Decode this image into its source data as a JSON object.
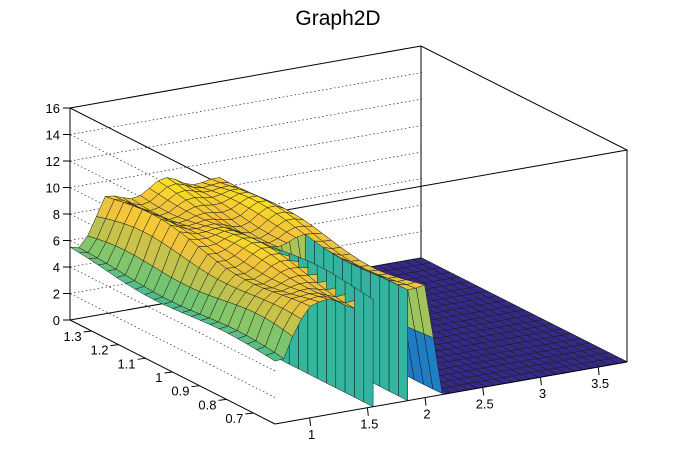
{
  "chart_data": {
    "type": "surface",
    "title": "Graph2D",
    "xlabel": "",
    "ylabel": "",
    "zlabel": "",
    "x_ticks": [
      "1",
      "1.5",
      "2",
      "2.5",
      "3",
      "3.5"
    ],
    "y_ticks": [
      "0.7",
      "0.8",
      "0.9",
      "1",
      "1.1",
      "1.2",
      "1.3"
    ],
    "z_ticks": [
      "0",
      "2",
      "4",
      "6",
      "8",
      "10",
      "12",
      "14",
      "16"
    ],
    "xlim": [
      0.7,
      3.75
    ],
    "ylim": [
      0.62,
      1.38
    ],
    "zlim": [
      0,
      16
    ],
    "grid": true,
    "colormap": [
      "#352a87",
      "#1e5cc0",
      "#1f9bc7",
      "#35b79c",
      "#7fc66c",
      "#c8c24b",
      "#f5c43a",
      "#f9fb0e"
    ],
    "surface_summary": [
      {
        "region": "low x edge (x ≈ 0.7–0.8)",
        "z_approx": 5
      },
      {
        "region": "plateau (x ≈ 0.95–2.0)",
        "z_approx": 8.5
      },
      {
        "region": "hole (x ≈ 1.55–1.85, y ≈ 0.62–1.0)",
        "z_approx": 0
      },
      {
        "region": "high x (x ≈ 2.0–3.75)",
        "z_approx": 0
      }
    ]
  }
}
